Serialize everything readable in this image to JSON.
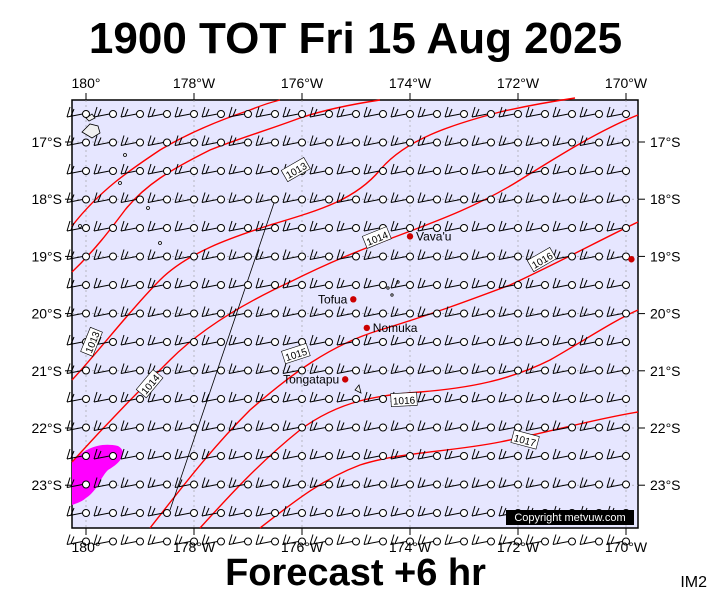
{
  "title": "1900 TOT Fri 15 Aug 2025",
  "subtitle": "Forecast +6 hr",
  "tag": "IM2",
  "copyright": "Copyright metvuw.com",
  "lon_ticks": [
    "180°",
    "178°W",
    "176°W",
    "174°W",
    "172°W",
    "170°W"
  ],
  "lat_ticks": [
    "17°S",
    "18°S",
    "19°S",
    "20°S",
    "21°S",
    "22°S",
    "23°S"
  ],
  "places": [
    {
      "name": "Vava'u",
      "lon": -174.0,
      "lat": -18.65
    },
    {
      "name": "Tofua",
      "lon": -175.05,
      "lat": -19.75
    },
    {
      "name": "Nomuka",
      "lon": -174.8,
      "lat": -20.25
    },
    {
      "name": "Tongatapu",
      "lon": -175.2,
      "lat": -21.15
    },
    {
      "name": "",
      "lon": -169.9,
      "lat": -19.05
    }
  ],
  "isobar_labels": [
    "1013",
    "1014",
    "1016",
    "1013",
    "1014",
    "1015",
    "1016",
    "1017"
  ],
  "colors": {
    "sea": "#e6e6ff",
    "isobar": "#ff0000",
    "rain": "#ff00ff",
    "place": "#cc0000"
  }
}
